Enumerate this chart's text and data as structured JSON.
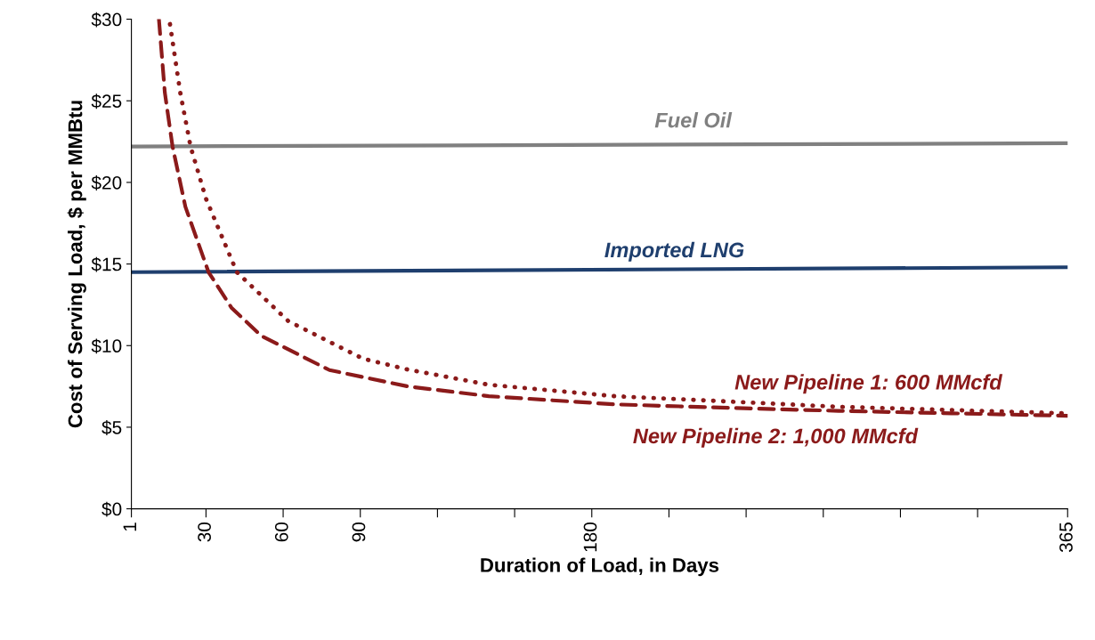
{
  "chart_data": {
    "type": "line",
    "xlabel": "Duration of Load, in Days",
    "ylabel": "Cost of Serving Load, $ per MMBtu",
    "xlim": [
      1,
      365
    ],
    "xticks": [
      1,
      30,
      60,
      90,
      {
        "value": 120,
        "label": null
      },
      {
        "value": 150,
        "label": null
      },
      180,
      {
        "value": 210,
        "label": null
      },
      {
        "value": 240,
        "label": null
      },
      {
        "value": 270,
        "label": null
      },
      {
        "value": 300,
        "label": null
      },
      {
        "value": 330,
        "label": null
      },
      365
    ],
    "ylim": [
      0,
      30
    ],
    "yticks": [
      {
        "value": 0,
        "label": "$0"
      },
      {
        "value": 5,
        "label": "$5"
      },
      {
        "value": 10,
        "label": "$10"
      },
      {
        "value": 15,
        "label": "$15"
      },
      {
        "value": 20,
        "label": "$20"
      },
      {
        "value": 25,
        "label": "$25"
      },
      {
        "value": 30,
        "label": "$30"
      }
    ],
    "grid": false,
    "legend": false,
    "series": [
      {
        "name": "Fuel Oil",
        "color": "#808080",
        "line_style": "solid",
        "x": [
          1,
          365
        ],
        "values": [
          22.2,
          22.4
        ]
      },
      {
        "name": "Imported LNG",
        "color": "#1f3f6e",
        "line_style": "solid",
        "x": [
          1,
          365
        ],
        "values": [
          14.5,
          14.8
        ]
      },
      {
        "name": "New Pipeline 1: 600 MMcfd",
        "color": "#8b1a1a",
        "line_style": "dotted",
        "x": [
          16,
          20,
          24,
          30,
          42,
          62,
          91,
          108,
          140,
          189,
          230,
          276,
          320,
          365
        ],
        "values": [
          29.7,
          25.5,
          22.2,
          19.0,
          14.5,
          11.5,
          9.2,
          8.55,
          7.6,
          6.9,
          6.6,
          6.25,
          6.05,
          5.85
        ]
      },
      {
        "name": "New Pipeline 2: 1,000 MMcfd",
        "color": "#8b1a1a",
        "line_style": "dashed",
        "x": [
          11.7,
          14,
          17,
          22,
          31,
          40,
          51.5,
          78,
          108.5,
          140,
          189,
          230,
          276,
          320,
          365
        ],
        "values": [
          30,
          25.5,
          22.2,
          18.5,
          14.5,
          12.3,
          10.6,
          8.5,
          7.5,
          6.9,
          6.4,
          6.2,
          6.0,
          5.85,
          5.7
        ]
      }
    ]
  }
}
